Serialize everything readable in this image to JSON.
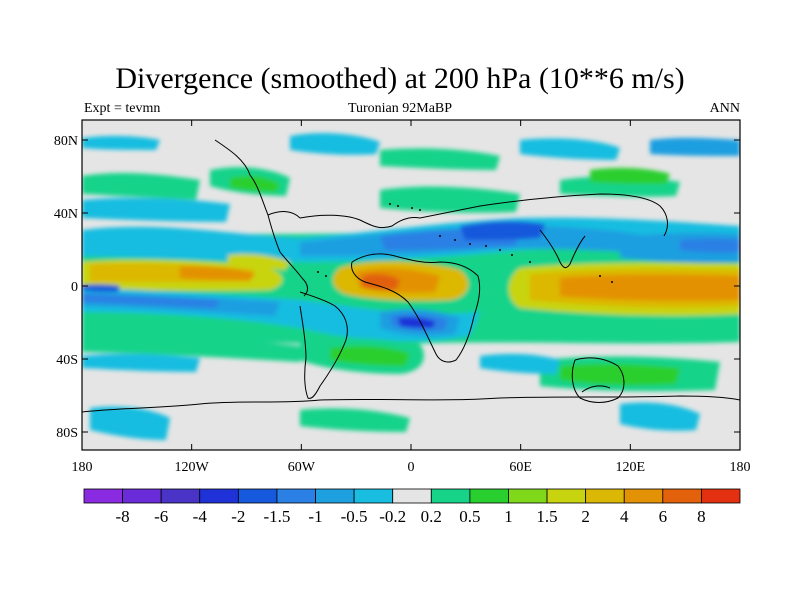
{
  "title": "Divergence (smoothed) at 200 hPa (10**6 m/s)",
  "subtitle_left": "Expt = tevmn",
  "subtitle_center": "Turonian  92MaBP",
  "subtitle_right": "ANN",
  "lat_ticks": [
    "80N",
    "40N",
    "0",
    "40S",
    "80S"
  ],
  "lon_ticks": [
    "180",
    "120W",
    "60W",
    "0",
    "60E",
    "120E",
    "180"
  ],
  "colorbar": {
    "levels": [
      "-8",
      "-6",
      "-4",
      "-2",
      "-1.5",
      "-1",
      "-0.5",
      "-0.2",
      "0.2",
      "0.5",
      "1",
      "1.5",
      "2",
      "4",
      "6",
      "8"
    ],
    "colors": [
      "#8a2be2",
      "#6a2bd8",
      "#4a34c8",
      "#1f32d8",
      "#1659dc",
      "#2a80e4",
      "#1e9fe0",
      "#19bde0",
      "#e5e5e5",
      "#17d38a",
      "#29cf2f",
      "#7fd81a",
      "#c8d40f",
      "#dcb806",
      "#e39105",
      "#e2610a",
      "#e33010"
    ]
  },
  "colors": {
    "background": "#e5e5e5",
    "coast": "#000000"
  }
}
